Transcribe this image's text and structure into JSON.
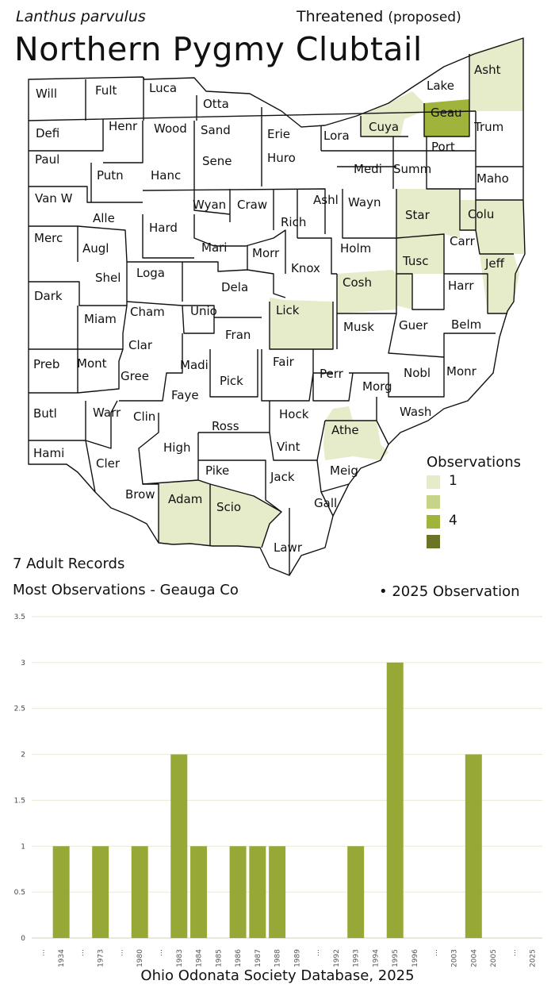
{
  "header": {
    "scientific_name": "Lanthus parvulus",
    "status_main": "Threatened",
    "status_paren": "(proposed)",
    "common_name": "Northern Pygmy Clubtail"
  },
  "summary": {
    "records": "7 Adult Records",
    "most_observations": "Most Observations - Geauga Co",
    "marker": "•",
    "obs_2025": "2025  Observation"
  },
  "legend": {
    "title": "Observations",
    "items": [
      {
        "label": "1",
        "color": "#e6ebc9"
      },
      {
        "label": "",
        "color": "#c6d489"
      },
      {
        "label": "4",
        "color": "#a0b43c"
      },
      {
        "label": "",
        "color": "#6b7324"
      }
    ]
  },
  "map": {
    "county_labels": [
      "Will",
      "Fult",
      "Luca",
      "Otta",
      "Defi",
      "Henr",
      "Wood",
      "Sand",
      "Erie",
      "Lora",
      "Cuya",
      "Lake",
      "Geau",
      "Asht",
      "Trum",
      "Paul",
      "Putn",
      "Hanc",
      "Sene",
      "Huro",
      "Medi",
      "Summ",
      "Port",
      "Maho",
      "Van W",
      "Alle",
      "Hard",
      "Wyan",
      "Craw",
      "Rich",
      "Ashl",
      "Wayn",
      "Star",
      "Colu",
      "Merc",
      "Augl",
      "Mari",
      "Morr",
      "Knox",
      "Holm",
      "Tusc",
      "Carr",
      "Jeff",
      "Shel",
      "Loga",
      "Dela",
      "Cosh",
      "Harr",
      "Dark",
      "Miam",
      "Cham",
      "Unio",
      "Lick",
      "Musk",
      "Guer",
      "Belm",
      "Clar",
      "Fran",
      "Preb",
      "Mont",
      "Gree",
      "Madi",
      "Fair",
      "Perr",
      "Nobl",
      "Monr",
      "Pick",
      "Morg",
      "Faye",
      "Butl",
      "Warr",
      "Clin",
      "Hock",
      "Wash",
      "Ross",
      "Athe",
      "Hami",
      "Cler",
      "High",
      "Vint",
      "Pike",
      "Jack",
      "Meig",
      "Brow",
      "Adam",
      "Scio",
      "Gall",
      "Lawr"
    ],
    "counties_with_observations": [
      {
        "county": "Geau",
        "level": 2
      },
      {
        "county": "Asht",
        "level": 0
      },
      {
        "county": "Cuya",
        "level": 0
      },
      {
        "county": "Star",
        "level": 0
      },
      {
        "county": "Colu",
        "level": 0
      },
      {
        "county": "Tusc",
        "level": 0
      },
      {
        "county": "Jeff",
        "level": 0
      },
      {
        "county": "Cosh",
        "level": 0
      },
      {
        "county": "Lick",
        "level": 0
      },
      {
        "county": "Athe",
        "level": 0
      },
      {
        "county": "Adam",
        "level": 0
      },
      {
        "county": "Scio",
        "level": 0
      }
    ]
  },
  "chart_data": {
    "type": "bar",
    "categories": [
      "…",
      "1934",
      "…",
      "1973",
      "…",
      "1980",
      "…",
      "1983",
      "1984",
      "1985",
      "1986",
      "1987",
      "1988",
      "1989",
      "…",
      "1992",
      "1993",
      "1994",
      "1995",
      "1996",
      "…",
      "2003",
      "2004",
      "2005",
      "…",
      "2025"
    ],
    "values": [
      0,
      1,
      0,
      1,
      0,
      1,
      0,
      2,
      1,
      0,
      1,
      1,
      1,
      0,
      0,
      0,
      1,
      0,
      3,
      0,
      0,
      0,
      2,
      0,
      0,
      0
    ],
    "yticks": [
      "0",
      "0.5",
      "1",
      "1.5",
      "2",
      "2.5",
      "3",
      "3.5"
    ],
    "ylim": [
      0,
      3.5
    ],
    "bar_color": "#98a836",
    "grid": true,
    "source": "Ohio Odonata Society Database, 2025"
  }
}
